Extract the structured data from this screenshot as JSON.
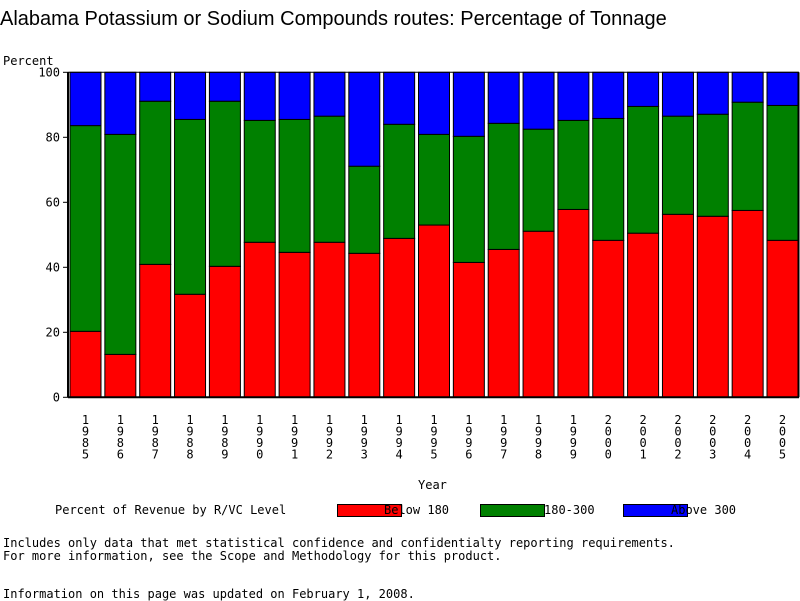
{
  "chart_data": {
    "type": "bar",
    "stacked": true,
    "title": "Alabama Potassium or Sodium Compounds routes: Percentage of Tonnage",
    "ylabel": "Percent",
    "xlabel": "Year",
    "ylim": [
      0,
      100
    ],
    "yticks": [
      0,
      20,
      40,
      60,
      80,
      100
    ],
    "categories": [
      "1985",
      "1986",
      "1987",
      "1988",
      "1989",
      "1990",
      "1991",
      "1992",
      "1993",
      "1994",
      "1995",
      "1996",
      "1997",
      "1998",
      "1999",
      "2000",
      "2001",
      "2002",
      "2003",
      "2004",
      "2005"
    ],
    "series": [
      {
        "name": "Below 180",
        "color": "#ff0000",
        "values": [
          20.3,
          13.2,
          40.9,
          31.7,
          40.3,
          47.7,
          44.6,
          47.7,
          44.3,
          48.9,
          53.0,
          41.5,
          45.5,
          51.1,
          57.8,
          48.3,
          50.5,
          56.3,
          55.7,
          57.5,
          48.3
        ]
      },
      {
        "name": "180-300",
        "color": "#008000",
        "values": [
          63.3,
          67.7,
          50.2,
          53.8,
          50.8,
          37.5,
          40.9,
          38.8,
          26.8,
          35.1,
          27.9,
          38.8,
          38.8,
          31.4,
          27.4,
          37.5,
          39.0,
          30.2,
          31.4,
          33.3,
          41.5
        ]
      },
      {
        "name": "Above 300",
        "color": "#0000ff",
        "values": [
          16.4,
          19.1,
          8.9,
          14.5,
          8.9,
          14.8,
          14.5,
          13.5,
          28.9,
          16.0,
          19.1,
          19.7,
          15.7,
          17.5,
          14.8,
          14.2,
          10.5,
          13.5,
          12.9,
          9.2,
          10.2
        ]
      }
    ],
    "legend": {
      "title": "Percent of Revenue by R/VC Level",
      "placement": "bottom"
    }
  },
  "footer": {
    "note1": "Includes only data that met statistical confidence and confidentialty reporting requirements.",
    "note2": "For more information, see the Scope and Methodology for this product.",
    "updated": "Information on this page was updated on February 1, 2008."
  }
}
